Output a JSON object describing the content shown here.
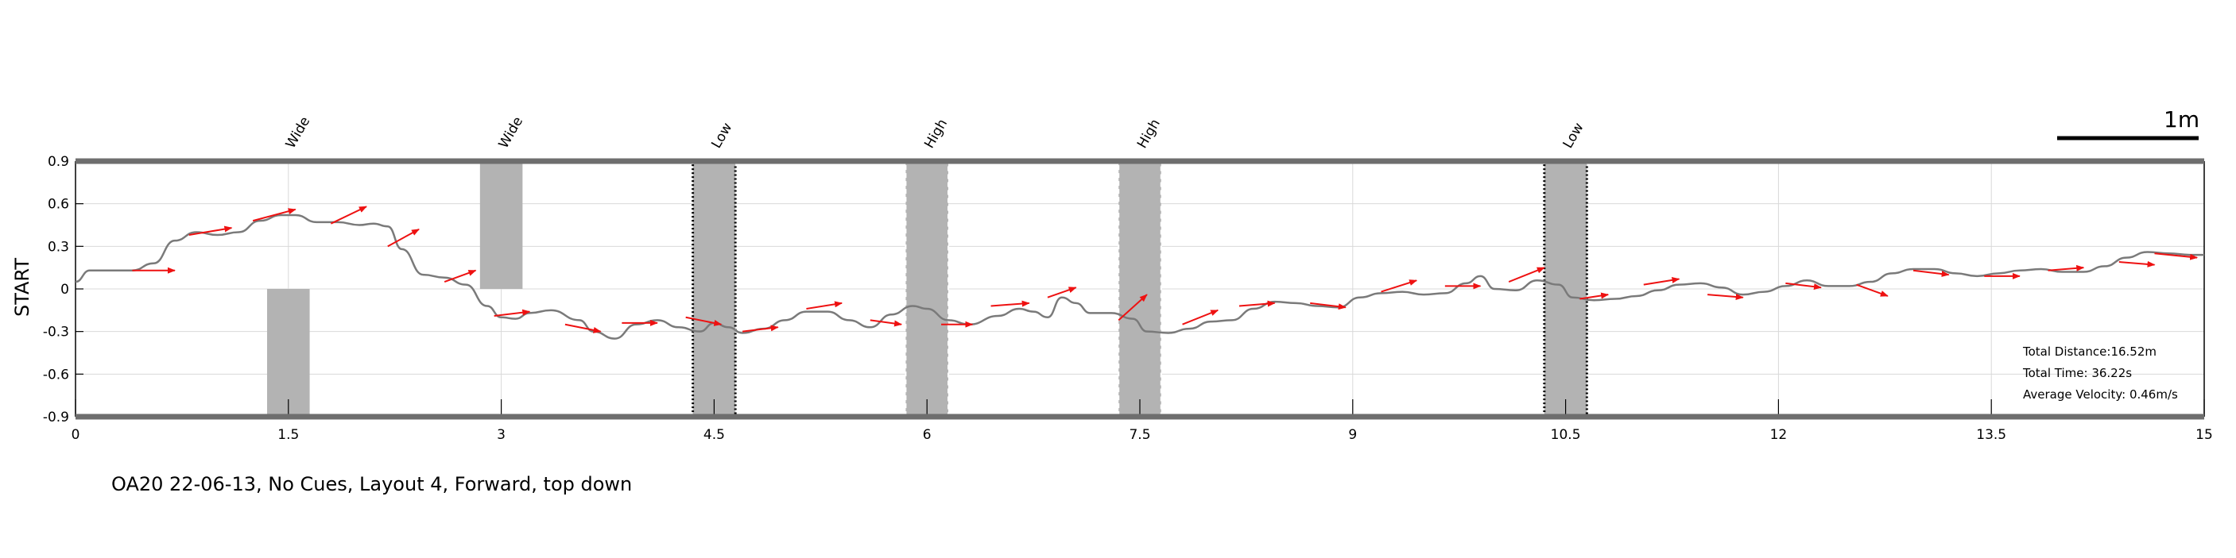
{
  "chart_data": {
    "type": "line",
    "ylabel": "START",
    "xlim": [
      0,
      15
    ],
    "ylim": [
      -0.9,
      0.9
    ],
    "xticks": [
      0,
      1.5,
      3,
      4.5,
      6,
      7.5,
      9,
      10.5,
      12,
      13.5,
      15
    ],
    "xtick_labels": [
      "0",
      "1.5",
      "3",
      "4.5",
      "6",
      "7.5",
      "9",
      "10.5",
      "12",
      "13.5",
      "15"
    ],
    "yticks": [
      0.9,
      0.6,
      0.3,
      0,
      -0.3,
      -0.6,
      -0.9
    ],
    "ytick_labels": [
      "0.9",
      "0.6",
      "0.3",
      "0",
      "-0.3",
      "-0.6",
      "-0.9"
    ],
    "grid": true,
    "scale_bar": {
      "label": "1m"
    },
    "obstacles": [
      {
        "label": "Wide",
        "x_range": [
          1.35,
          1.65
        ],
        "y_range": [
          -0.9,
          0.0
        ],
        "style": "plain"
      },
      {
        "label": "Wide",
        "x_range": [
          2.85,
          3.15
        ],
        "y_range": [
          0.0,
          0.9
        ],
        "style": "plain"
      },
      {
        "label": "Low",
        "x_range": [
          4.35,
          4.65
        ],
        "y_range": [
          -0.9,
          0.9
        ],
        "style": "dotted"
      },
      {
        "label": "High",
        "x_range": [
          5.85,
          6.15
        ],
        "y_range": [
          -0.9,
          0.9
        ],
        "style": "dashed"
      },
      {
        "label": "High",
        "x_range": [
          7.35,
          7.65
        ],
        "y_range": [
          -0.9,
          0.9
        ],
        "style": "dashed"
      },
      {
        "label": "Low",
        "x_range": [
          10.35,
          10.65
        ],
        "y_range": [
          -0.9,
          0.9
        ],
        "style": "dotted"
      }
    ],
    "path": {
      "x": [
        0,
        0.1,
        0.4,
        0.55,
        0.7,
        0.85,
        1.0,
        1.15,
        1.3,
        1.45,
        1.55,
        1.7,
        1.85,
        2.0,
        2.1,
        2.2,
        2.3,
        2.45,
        2.6,
        2.75,
        2.9,
        3.0,
        3.1,
        3.2,
        3.35,
        3.55,
        3.65,
        3.8,
        3.95,
        4.1,
        4.25,
        4.4,
        4.5,
        4.6,
        4.7,
        4.85,
        5.0,
        5.15,
        5.3,
        5.45,
        5.6,
        5.75,
        5.9,
        6.0,
        6.15,
        6.3,
        6.5,
        6.65,
        6.75,
        6.85,
        6.95,
        7.05,
        7.15,
        7.3,
        7.45,
        7.55,
        7.7,
        7.85,
        8.0,
        8.15,
        8.3,
        8.45,
        8.6,
        8.75,
        8.9,
        9.05,
        9.2,
        9.35,
        9.5,
        9.65,
        9.8,
        9.9,
        10.0,
        10.15,
        10.3,
        10.45,
        10.55,
        10.7,
        10.85,
        11.0,
        11.15,
        11.3,
        11.45,
        11.6,
        11.75,
        11.9,
        12.05,
        12.2,
        12.35,
        12.5,
        12.65,
        12.8,
        12.95,
        13.1,
        13.25,
        13.4,
        13.55,
        13.7,
        13.85,
        14.0,
        14.15,
        14.3,
        14.45,
        14.6,
        14.75,
        14.9,
        15.0
      ],
      "y": [
        0.05,
        0.13,
        0.13,
        0.18,
        0.34,
        0.4,
        0.38,
        0.4,
        0.48,
        0.52,
        0.52,
        0.47,
        0.47,
        0.45,
        0.46,
        0.44,
        0.28,
        0.1,
        0.08,
        0.03,
        -0.12,
        -0.2,
        -0.21,
        -0.17,
        -0.15,
        -0.22,
        -0.3,
        -0.35,
        -0.25,
        -0.22,
        -0.27,
        -0.3,
        -0.24,
        -0.27,
        -0.31,
        -0.28,
        -0.22,
        -0.16,
        -0.16,
        -0.22,
        -0.27,
        -0.18,
        -0.12,
        -0.14,
        -0.22,
        -0.25,
        -0.19,
        -0.14,
        -0.16,
        -0.2,
        -0.06,
        -0.1,
        -0.17,
        -0.17,
        -0.21,
        -0.3,
        -0.31,
        -0.28,
        -0.23,
        -0.22,
        -0.14,
        -0.09,
        -0.1,
        -0.12,
        -0.13,
        -0.06,
        -0.03,
        -0.02,
        -0.04,
        -0.03,
        0.04,
        0.09,
        0.0,
        -0.01,
        0.06,
        0.03,
        -0.06,
        -0.08,
        -0.07,
        -0.05,
        -0.01,
        0.03,
        0.04,
        0.01,
        -0.04,
        -0.02,
        0.02,
        0.06,
        0.02,
        0.02,
        0.05,
        0.11,
        0.14,
        0.14,
        0.11,
        0.09,
        0.11,
        0.13,
        0.14,
        0.12,
        0.12,
        0.16,
        0.22,
        0.26,
        0.25,
        0.24,
        0.24
      ]
    },
    "velocity_arrows": [
      {
        "x": 0.4,
        "y": 0.13,
        "dx": 0.3,
        "dy": 0.0
      },
      {
        "x": 0.8,
        "y": 0.38,
        "dx": 0.3,
        "dy": 0.05
      },
      {
        "x": 1.25,
        "y": 0.48,
        "dx": 0.3,
        "dy": 0.08
      },
      {
        "x": 1.8,
        "y": 0.46,
        "dx": 0.25,
        "dy": 0.12
      },
      {
        "x": 2.2,
        "y": 0.3,
        "dx": 0.22,
        "dy": 0.12
      },
      {
        "x": 2.6,
        "y": 0.05,
        "dx": 0.22,
        "dy": 0.08
      },
      {
        "x": 2.95,
        "y": -0.19,
        "dx": 0.25,
        "dy": 0.03
      },
      {
        "x": 3.45,
        "y": -0.25,
        "dx": 0.25,
        "dy": -0.05
      },
      {
        "x": 3.85,
        "y": -0.24,
        "dx": 0.25,
        "dy": 0.0
      },
      {
        "x": 4.3,
        "y": -0.2,
        "dx": 0.25,
        "dy": -0.05
      },
      {
        "x": 4.7,
        "y": -0.3,
        "dx": 0.25,
        "dy": 0.03
      },
      {
        "x": 5.15,
        "y": -0.14,
        "dx": 0.25,
        "dy": 0.04
      },
      {
        "x": 5.6,
        "y": -0.22,
        "dx": 0.22,
        "dy": -0.03
      },
      {
        "x": 6.1,
        "y": -0.25,
        "dx": 0.22,
        "dy": 0.0
      },
      {
        "x": 6.45,
        "y": -0.12,
        "dx": 0.27,
        "dy": 0.02
      },
      {
        "x": 6.85,
        "y": -0.06,
        "dx": 0.2,
        "dy": 0.07
      },
      {
        "x": 7.35,
        "y": -0.22,
        "dx": 0.2,
        "dy": 0.18
      },
      {
        "x": 7.8,
        "y": -0.25,
        "dx": 0.25,
        "dy": 0.1
      },
      {
        "x": 8.2,
        "y": -0.12,
        "dx": 0.25,
        "dy": 0.02
      },
      {
        "x": 8.7,
        "y": -0.1,
        "dx": 0.25,
        "dy": -0.03
      },
      {
        "x": 9.2,
        "y": -0.02,
        "dx": 0.25,
        "dy": 0.08
      },
      {
        "x": 9.65,
        "y": 0.02,
        "dx": 0.25,
        "dy": 0.0
      },
      {
        "x": 10.1,
        "y": 0.05,
        "dx": 0.25,
        "dy": 0.1
      },
      {
        "x": 10.6,
        "y": -0.07,
        "dx": 0.2,
        "dy": 0.03
      },
      {
        "x": 11.05,
        "y": 0.03,
        "dx": 0.25,
        "dy": 0.04
      },
      {
        "x": 11.5,
        "y": -0.04,
        "dx": 0.25,
        "dy": -0.02
      },
      {
        "x": 12.05,
        "y": 0.04,
        "dx": 0.25,
        "dy": -0.03
      },
      {
        "x": 12.55,
        "y": 0.03,
        "dx": 0.22,
        "dy": -0.08
      },
      {
        "x": 12.95,
        "y": 0.13,
        "dx": 0.25,
        "dy": -0.03
      },
      {
        "x": 13.45,
        "y": 0.09,
        "dx": 0.25,
        "dy": 0.0
      },
      {
        "x": 13.9,
        "y": 0.13,
        "dx": 0.25,
        "dy": 0.02
      },
      {
        "x": 14.4,
        "y": 0.19,
        "dx": 0.25,
        "dy": -0.02
      },
      {
        "x": 14.65,
        "y": 0.25,
        "dx": 0.3,
        "dy": -0.03
      }
    ],
    "stats": {
      "distance": "Total Distance:16.52m",
      "time": "Total Time: 36.22s",
      "velocity": "Average Velocity: 0.46m/s"
    },
    "caption": "OA20 22-06-13, No Cues, Layout 4, Forward, top down",
    "colors": {
      "path": "#7a7a7a",
      "arrow": "#ee1111",
      "obstacle": "#b3b3b3",
      "border": "#6e6e6e",
      "grid": "#d9d9d9"
    }
  }
}
